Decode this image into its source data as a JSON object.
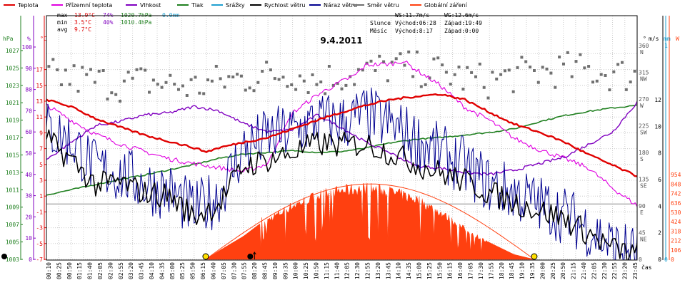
{
  "chart_data": {
    "type": "line",
    "title": "9.4.2011",
    "time_axis_label": "čas",
    "legend": [
      {
        "name": "Teplota",
        "color": "#e00000"
      },
      {
        "name": "Přízemní teplota",
        "color": "#e000e0"
      },
      {
        "name": "Vlhkost",
        "color": "#8000c0"
      },
      {
        "name": "Tlak",
        "color": "#208020"
      },
      {
        "name": "Srážky",
        "color": "#20a0d0"
      },
      {
        "name": "Rychlost větru",
        "color": "#000000"
      },
      {
        "name": "Náraz větru",
        "color": "#000090"
      },
      {
        "name": "Směr větru",
        "color": "#707070"
      },
      {
        "name": "Globální záření",
        "color": "#ff4010"
      }
    ],
    "stats": {
      "max": {
        "label": "max",
        "temp": "13.9°C",
        "hum": "74%",
        "press": "1020.7hPa",
        "rain": "0.0mm"
      },
      "min": {
        "label": "min",
        "temp": "3.5°C",
        "hum": "40%",
        "press": "1010.4hPa"
      },
      "avg": {
        "label": "avg",
        "temp": "9.7°C"
      }
    },
    "info": {
      "ws": "WS:11.7m/s",
      "wg": "WG:12.6m/s",
      "slunce": "Slunce",
      "slunce_vychod": "Východ:06:28",
      "slunce_zapad": "Západ:19:49",
      "mesic": "Měsíc",
      "mesic_vychod": "Východ:8:17",
      "mesic_zapad": "Západ:0:00"
    },
    "axes": {
      "hpa": {
        "unit": "hPa",
        "min": 1003,
        "max": 1027,
        "ticks": [
          "1027",
          "1025",
          "1023",
          "1021",
          "1019",
          "1017",
          "1015",
          "1013",
          "1011",
          "1009",
          "1007",
          "1005",
          "1003"
        ]
      },
      "pct": {
        "unit": "%",
        "min": 0,
        "max": 100,
        "ticks": [
          "100",
          "90",
          "80",
          "70",
          "60",
          "50",
          "40",
          "30",
          "20",
          "10",
          "0"
        ]
      },
      "degc": {
        "unit": "°C",
        "min": -7,
        "max": 19,
        "ticks": [
          "17",
          "15",
          "13",
          "11",
          "9",
          "7",
          "5",
          "3",
          "1",
          "-1",
          "-3",
          "-5",
          "-7"
        ]
      },
      "dir": {
        "unit": "°",
        "ticks": [
          {
            "deg": "360",
            "lbl": "N"
          },
          {
            "deg": "315",
            "lbl": "NW"
          },
          {
            "deg": "270",
            "lbl": "W"
          },
          {
            "deg": "225",
            "lbl": "SW"
          },
          {
            "deg": "180",
            "lbl": "S"
          },
          {
            "deg": "135",
            "lbl": "SE"
          },
          {
            "deg": "90",
            "lbl": "E"
          },
          {
            "deg": "45",
            "lbl": "NE"
          },
          {
            "deg": "0",
            "lbl": ""
          }
        ]
      },
      "ms": {
        "unit": "m/s",
        "ticks": [
          "12",
          "10",
          "8",
          "6",
          "4",
          "2",
          "0"
        ]
      },
      "mm": {
        "unit": "mm",
        "ticks": [
          "1",
          "0"
        ]
      },
      "w": {
        "unit": "W",
        "ticks": [
          "954",
          "848",
          "742",
          "636",
          "530",
          "424",
          "318",
          "212",
          "106",
          "0"
        ]
      }
    },
    "x_ticks": [
      "00:10",
      "00:25",
      "00:50",
      "01:15",
      "01:40",
      "02:05",
      "02:30",
      "02:55",
      "03:20",
      "03:45",
      "04:10",
      "04:35",
      "05:00",
      "05:25",
      "05:50",
      "06:15",
      "06:40",
      "07:05",
      "07:30",
      "07:55",
      "08:20",
      "08:45",
      "09:10",
      "09:35",
      "10:00",
      "10:25",
      "10:50",
      "11:15",
      "11:40",
      "12:05",
      "12:30",
      "12:55",
      "13:20",
      "13:45",
      "14:10",
      "14:35",
      "15:00",
      "15:25",
      "15:50",
      "16:15",
      "16:40",
      "17:05",
      "17:30",
      "17:55",
      "18:20",
      "18:45",
      "19:10",
      "19:35",
      "20:00",
      "20:25",
      "20:50",
      "21:15",
      "21:40",
      "22:05",
      "22:30",
      "22:55",
      "23:20",
      "23:45"
    ],
    "series": {
      "temperature": {
        "x": [
          0,
          1,
          2,
          3,
          4,
          5,
          6,
          6.5,
          7,
          8,
          9,
          10,
          11,
          12,
          13,
          14,
          15,
          16,
          17,
          18,
          19,
          20,
          21,
          22,
          23,
          24
        ],
        "y": [
          13.2,
          12.3,
          10.8,
          9.7,
          8.7,
          7.9,
          7.1,
          6.6,
          7.1,
          7.8,
          8.4,
          9.5,
          10.6,
          11.6,
          12.5,
          13.2,
          13.6,
          13.9,
          13.2,
          11.6,
          10.1,
          9.1,
          7.9,
          6.3,
          4.9,
          3.5
        ]
      },
      "ground_temperature": {
        "x": [
          0,
          1,
          2,
          3,
          4,
          5,
          6,
          7,
          8,
          9,
          9.5,
          10,
          11,
          12,
          12.5,
          13,
          14,
          14.5,
          15,
          16,
          17,
          18,
          19,
          20,
          21,
          22,
          23,
          24
        ],
        "y": [
          12.5,
          10.6,
          8.8,
          7.6,
          6.6,
          5.7,
          5.1,
          4.6,
          4.1,
          5.1,
          8.5,
          11.5,
          13.8,
          15.5,
          16.2,
          17.6,
          17.7,
          18.1,
          17.0,
          15.0,
          12.2,
          10.6,
          8.3,
          6.9,
          5.8,
          4.6,
          2.0,
          -0.2
        ]
      },
      "humidity": {
        "x": [
          0,
          1,
          2,
          3,
          4,
          5,
          6,
          7,
          8,
          9,
          10,
          11,
          12,
          13,
          14,
          15,
          16,
          17,
          18,
          19,
          20,
          21,
          22,
          23,
          24
        ],
        "y": [
          47,
          55,
          63,
          65,
          68,
          69,
          72,
          70,
          64,
          60,
          61,
          68,
          62,
          55,
          50,
          44,
          43,
          41,
          40,
          42,
          45,
          48,
          54,
          60,
          74
        ]
      },
      "pressure": {
        "x": [
          0,
          1,
          2,
          3,
          4,
          5,
          6,
          7,
          8,
          9,
          10,
          11,
          12,
          13,
          14,
          15,
          16,
          17,
          18,
          19,
          20,
          21,
          22,
          23,
          24
        ],
        "y": [
          1010.4,
          1011.0,
          1011.6,
          1012.2,
          1012.7,
          1013.3,
          1013.9,
          1014.6,
          1015.1,
          1015.3,
          1015.5,
          1015.3,
          1015.4,
          1015.8,
          1016.4,
          1016.8,
          1017.0,
          1017.3,
          1017.6,
          1018.0,
          1018.8,
          1019.5,
          1020.0,
          1020.4,
          1020.7
        ]
      },
      "wind_speed": {
        "x": [
          0,
          1,
          2,
          3,
          4,
          5,
          6,
          7,
          8,
          9,
          10,
          11,
          12,
          13,
          14,
          15,
          16,
          17,
          18,
          19,
          20,
          21,
          22,
          23,
          24
        ],
        "y": [
          9.0,
          7.5,
          5.6,
          5.8,
          5.0,
          4.8,
          3.2,
          4.2,
          7.0,
          7.5,
          8.0,
          8.7,
          8.6,
          8.7,
          8.0,
          7.2,
          6.5,
          5.9,
          5.0,
          4.3,
          3.7,
          3.1,
          2.0,
          0.8,
          0.3
        ]
      },
      "wind_gust": {
        "x": [
          0,
          1,
          2,
          3,
          4,
          5,
          6,
          7,
          8,
          9,
          10,
          11,
          12,
          13,
          14,
          15,
          16,
          17,
          18,
          19,
          20,
          21,
          22,
          23,
          24
        ],
        "y": [
          9.8,
          8.9,
          6.8,
          6.4,
          5.6,
          5.1,
          3.6,
          4.8,
          8.3,
          9.2,
          9.6,
          10.4,
          10.3,
          10.9,
          10.1,
          9.0,
          8.0,
          7.0,
          5.6,
          5.0,
          4.2,
          3.4,
          2.4,
          1.0,
          0.4
        ]
      },
      "solar_radiation": {
        "x": [
          6.47,
          7,
          8,
          9,
          10,
          11,
          12,
          13,
          14,
          15,
          16,
          17,
          18,
          19,
          19.82
        ],
        "y": [
          0,
          95,
          260,
          470,
          640,
          760,
          820,
          850,
          805,
          720,
          560,
          360,
          190,
          55,
          0
        ]
      },
      "wind_direction_deg": {
        "x": [
          0,
          1,
          2,
          3,
          4,
          5,
          6,
          7,
          8,
          9,
          10,
          11,
          12,
          13,
          14,
          15,
          16,
          17,
          18,
          19,
          20,
          21,
          22,
          23,
          24
        ],
        "y": [
          310,
          305,
          300,
          295,
          300,
          295,
          290,
          300,
          305,
          310,
          315,
          300,
          310,
          315,
          325,
          320,
          315,
          305,
          300,
          310,
          315,
          320,
          318,
          312,
          310
        ]
      }
    },
    "markers": {
      "sunrise_hour": 6.47,
      "sunset_hour": 19.82,
      "moonrise_hour": 8.28,
      "moonset_hour": 0.0,
      "sun_color": "#ffe000",
      "moon_color": "#000000"
    }
  }
}
